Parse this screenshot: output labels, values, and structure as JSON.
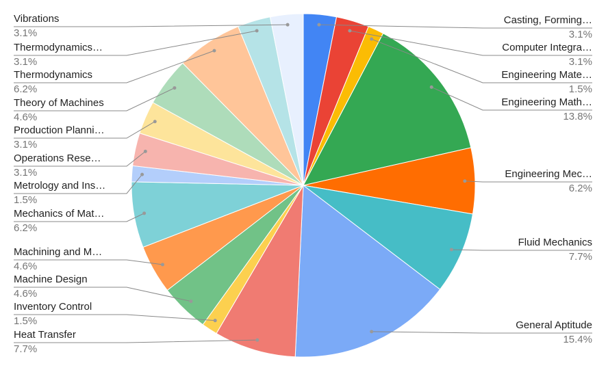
{
  "chart_data": {
    "type": "pie",
    "categories": [
      "Casting, Forming…",
      "Computer Integra…",
      "Engineering Mate…",
      "Engineering Math…",
      "Engineering Mec…",
      "Fluid Mechanics",
      "General Aptitude",
      "Heat Transfer",
      "Inventory Control",
      "Machine Design",
      "Machining and M…",
      "Mechanics of Mat…",
      "Metrology and Ins…",
      "Operations Rese…",
      "Production Planni…",
      "Theory of Machines",
      "Thermodynamics",
      "Thermodynamics…",
      "Vibrations"
    ],
    "values": [
      3.1,
      3.1,
      1.5,
      13.8,
      6.2,
      7.7,
      15.4,
      7.7,
      1.5,
      4.6,
      4.6,
      6.2,
      1.5,
      3.1,
      3.1,
      4.6,
      6.2,
      3.1,
      3.1
    ],
    "value_labels": [
      "3.1%",
      "3.1%",
      "1.5%",
      "13.8%",
      "6.2%",
      "7.7%",
      "15.4%",
      "7.7%",
      "1.5%",
      "4.6%",
      "4.6%",
      "6.2%",
      "1.5%",
      "3.1%",
      "3.1%",
      "4.6%",
      "6.2%",
      "3.1%",
      "3.1%"
    ],
    "colors": [
      "#4285f4",
      "#ea4335",
      "#fbbc04",
      "#34a853",
      "#ff6d01",
      "#46bdc6",
      "#7baaf7",
      "#f07b72",
      "#fcd04f",
      "#71c287",
      "#ff994d",
      "#7ed1d7",
      "#b3cefb",
      "#f7b4ae",
      "#fde49b",
      "#aedcba",
      "#ffc599",
      "#b5e3e7",
      "#e8f0fe"
    ]
  }
}
